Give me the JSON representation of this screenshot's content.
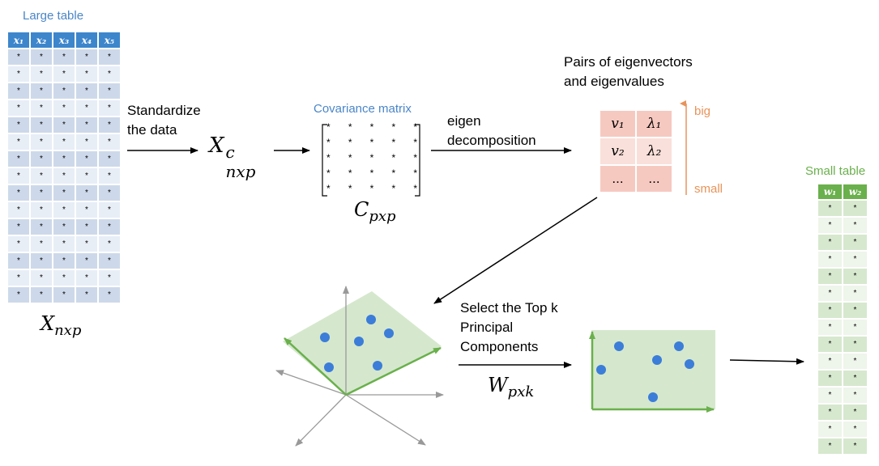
{
  "large_table": {
    "title": "Large table",
    "headers": [
      "x₁",
      "x₂",
      "x₃",
      "x₄",
      "x₅"
    ],
    "row_count": 15,
    "cell": "*",
    "label": "X",
    "label_sub": "nxp"
  },
  "step1": {
    "line1": "Standardize",
    "line2": "the data"
  },
  "xc": {
    "base": "X",
    "sup": "c",
    "sub": "nxp"
  },
  "covariance": {
    "title": "Covariance matrix",
    "cell": "*",
    "label": "C",
    "label_sub": "pxp"
  },
  "step2": {
    "line1": "eigen",
    "line2": "decomposition"
  },
  "eigen_pairs": {
    "title_line1": "Pairs of eigenvectors",
    "title_line2": "and eigenvalues",
    "rows": [
      [
        "v₁",
        "λ₁"
      ],
      [
        "v₂",
        "λ₂"
      ],
      [
        "...",
        "..."
      ]
    ],
    "big_label": "big",
    "small_label": "small"
  },
  "step3": {
    "line1": "Select the Top k",
    "line2": "Principal",
    "line3": "Components",
    "w_base": "W",
    "w_sub": "pxk"
  },
  "small_table": {
    "title": "Small table",
    "headers": [
      "w₁",
      "w₂"
    ],
    "row_count": 15,
    "cell": "*"
  },
  "colors": {
    "blue": "#4a86c8",
    "green": "#6ab04c",
    "point": "#3b7dd8",
    "orange": "#e8935a"
  }
}
